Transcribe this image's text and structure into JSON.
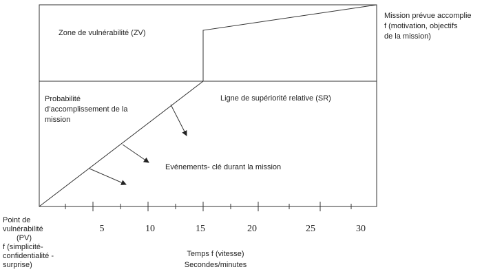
{
  "zone_label": "Zone de vulnérabilité (ZV)",
  "probability_label": [
    "Probabilité",
    "d’accomplissement de la",
    "mission"
  ],
  "superiority_label": "Ligne de supériorité relative (SR)",
  "events_label": "Evénements- clé durant la mission",
  "mission_label": [
    "Mission prévue accomplie",
    " f (motivation, objectifs",
    "de la mission)"
  ],
  "vulnerability_point": [
    "Point de",
    "vulnérabilité",
    "(PV)",
    "f (simplicité-",
    "confidentialité -",
    "surprise)"
  ],
  "axis_labels": [
    "5",
    "10",
    "15",
    "20",
    "25",
    "30"
  ],
  "axis_title": [
    "Temps f (vitesse)",
    "Secondes/minutes"
  ]
}
